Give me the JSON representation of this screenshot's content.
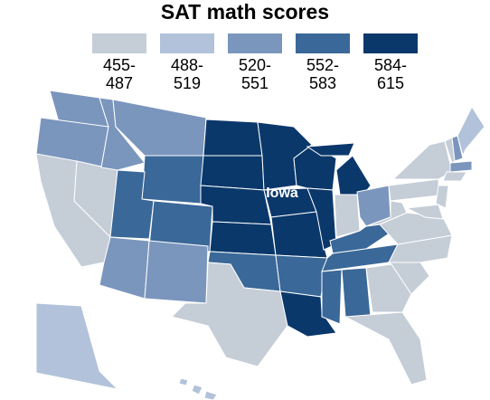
{
  "title": "SAT math scores",
  "legend": {
    "items": [
      {
        "label": "455-\n487",
        "color": "#c5cdd7"
      },
      {
        "label": "488-\n519",
        "color": "#b1c2da"
      },
      {
        "label": "520-\n551",
        "color": "#7b96bd"
      },
      {
        "label": "552-\n583",
        "color": "#3a6898"
      },
      {
        "label": "584-\n615",
        "color": "#0b386b"
      }
    ]
  },
  "annotation": "Iowa"
}
